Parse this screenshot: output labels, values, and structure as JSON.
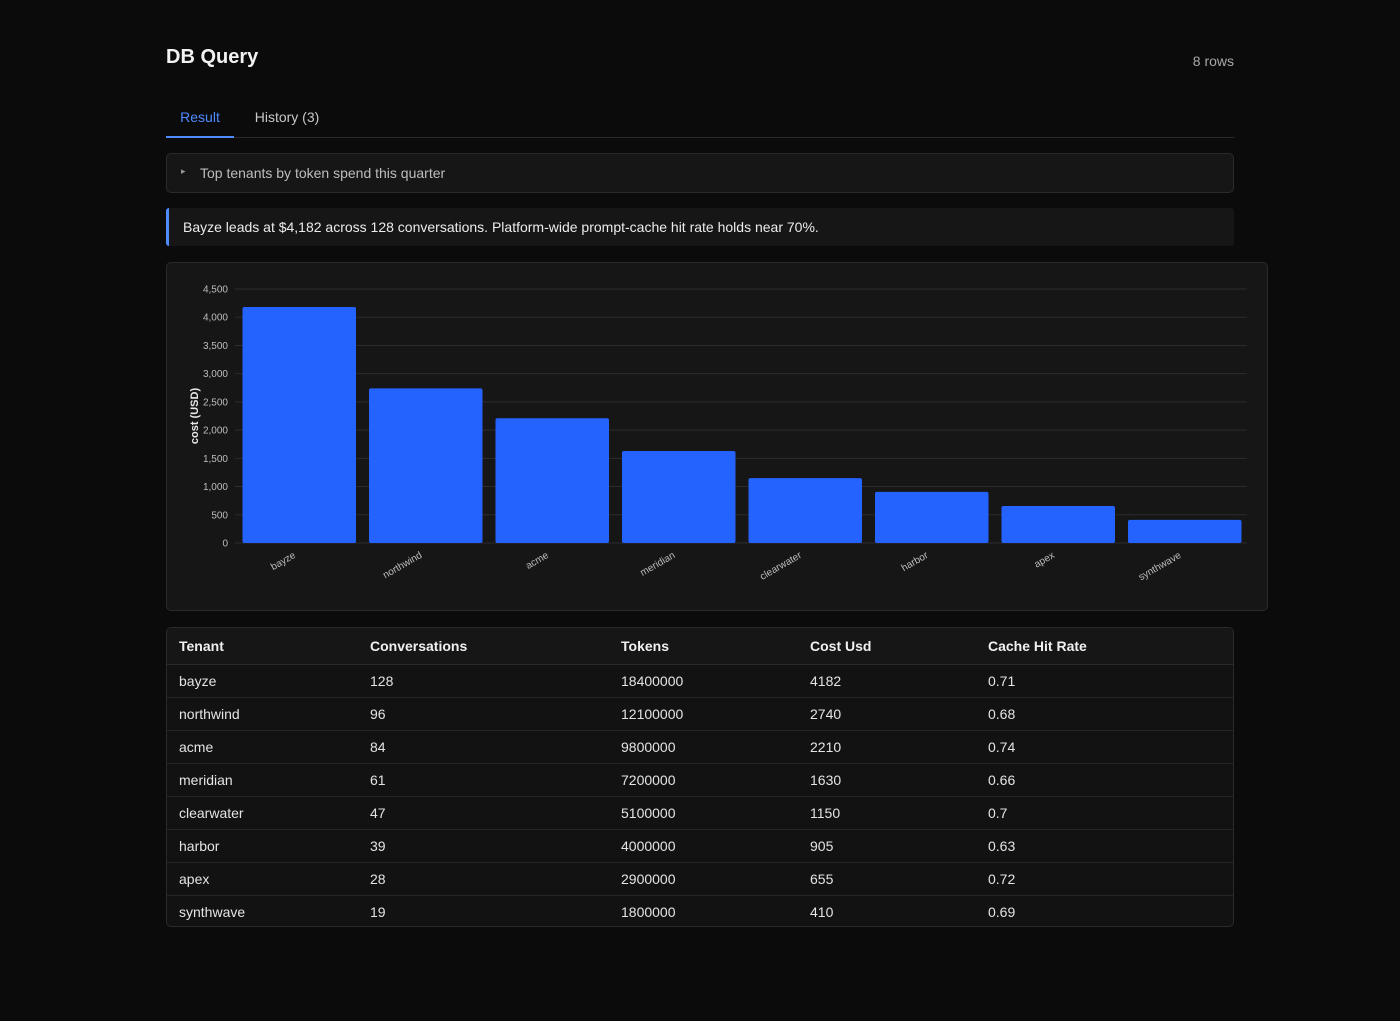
{
  "header": {
    "title": "DB Query",
    "row_count": "8 rows"
  },
  "tabs": [
    {
      "label": "Result",
      "active": true
    },
    {
      "label": "History (3)",
      "active": false
    }
  ],
  "query": {
    "text": "Top tenants by token spend this quarter",
    "caret": "▸"
  },
  "summary": {
    "text": "Bayze leads at $4,182 across 128 conversations. Platform-wide prompt-cache hit rate holds near 70%."
  },
  "colors": {
    "accent": "#4d8bff",
    "bar": "#2563ff",
    "background": "#0b0b0c",
    "panel": "#161617"
  },
  "chart_data": {
    "type": "bar",
    "categories": [
      "bayze",
      "northwind",
      "acme",
      "meridian",
      "clearwater",
      "harbor",
      "apex",
      "synthwave"
    ],
    "values": [
      4182,
      2740,
      2210,
      1630,
      1150,
      905,
      655,
      410
    ],
    "title": "",
    "xlabel": "",
    "ylabel": "cost (USD)",
    "ylim": [
      0,
      4500
    ],
    "yticks": [
      "0",
      "500",
      "1,000",
      "1,500",
      "2,000",
      "2,500",
      "3,000",
      "3,500",
      "4,000",
      "4,500"
    ],
    "grid": true,
    "legend": "none"
  },
  "table": {
    "columns": [
      "Tenant",
      "Conversations",
      "Tokens",
      "Cost Usd",
      "Cache Hit Rate"
    ],
    "rows": [
      [
        "bayze",
        "128",
        "18400000",
        "4182",
        "0.71"
      ],
      [
        "northwind",
        "96",
        "12100000",
        "2740",
        "0.68"
      ],
      [
        "acme",
        "84",
        "9800000",
        "2210",
        "0.74"
      ],
      [
        "meridian",
        "61",
        "7200000",
        "1630",
        "0.66"
      ],
      [
        "clearwater",
        "47",
        "5100000",
        "1150",
        "0.7"
      ],
      [
        "harbor",
        "39",
        "4000000",
        "905",
        "0.63"
      ],
      [
        "apex",
        "28",
        "2900000",
        "655",
        "0.72"
      ],
      [
        "synthwave",
        "19",
        "1800000",
        "410",
        "0.69"
      ]
    ]
  }
}
